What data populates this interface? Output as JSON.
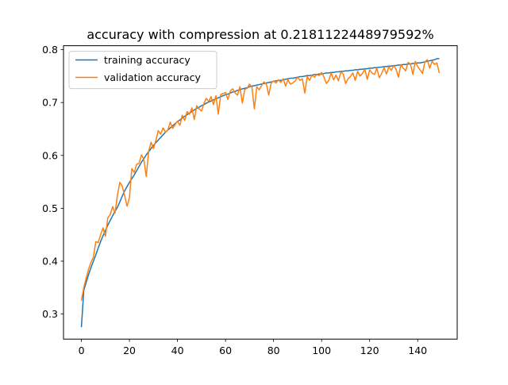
{
  "chart_data": {
    "type": "line",
    "title": "accuracy with compression at 0.2181122448979592%",
    "xlabel": "",
    "ylabel": "",
    "xlim": [
      -7.45,
      156.45
    ],
    "ylim": [
      0.2525,
      0.8075
    ],
    "xticks": [
      0,
      20,
      40,
      60,
      80,
      100,
      120,
      140
    ],
    "yticks": [
      0.3,
      0.4,
      0.5,
      0.6,
      0.7,
      0.8
    ],
    "xtick_labels": [
      "0",
      "20",
      "40",
      "60",
      "80",
      "100",
      "120",
      "140"
    ],
    "ytick_labels": [
      "0.3",
      "0.4",
      "0.5",
      "0.6",
      "0.7",
      "0.8"
    ],
    "grid": false,
    "legend_position": "upper left",
    "series": [
      {
        "name": "training accuracy",
        "color": "#1f77b4",
        "x": [
          0,
          1,
          2,
          3,
          4,
          5,
          6,
          7,
          8,
          9,
          10,
          11,
          12,
          13,
          14,
          15,
          16,
          17,
          18,
          19,
          20,
          21,
          22,
          23,
          24,
          25,
          26,
          27,
          28,
          29,
          30,
          31,
          32,
          33,
          34,
          35,
          36,
          37,
          38,
          39,
          40,
          41,
          42,
          43,
          44,
          45,
          46,
          47,
          48,
          49,
          50,
          51,
          52,
          53,
          54,
          55,
          56,
          57,
          58,
          59,
          60,
          61,
          62,
          63,
          64,
          65,
          66,
          67,
          68,
          69,
          70,
          71,
          72,
          73,
          74,
          75,
          76,
          77,
          78,
          79,
          80,
          81,
          82,
          83,
          84,
          85,
          86,
          87,
          88,
          89,
          90,
          91,
          92,
          93,
          94,
          95,
          96,
          97,
          98,
          99,
          100,
          101,
          102,
          103,
          104,
          105,
          106,
          107,
          108,
          109,
          110,
          111,
          112,
          113,
          114,
          115,
          116,
          117,
          118,
          119,
          120,
          121,
          122,
          123,
          124,
          125,
          126,
          127,
          128,
          129,
          130,
          131,
          132,
          133,
          134,
          135,
          136,
          137,
          138,
          139,
          140,
          141,
          142,
          143,
          144,
          145,
          146,
          147,
          148,
          149
        ],
        "values": [
          0.275,
          0.345,
          0.36,
          0.375,
          0.388,
          0.4,
          0.412,
          0.425,
          0.437,
          0.448,
          0.458,
          0.468,
          0.477,
          0.486,
          0.494,
          0.502,
          0.512,
          0.523,
          0.533,
          0.541,
          0.549,
          0.556,
          0.563,
          0.571,
          0.579,
          0.587,
          0.594,
          0.601,
          0.607,
          0.613,
          0.619,
          0.624,
          0.629,
          0.634,
          0.639,
          0.644,
          0.648,
          0.652,
          0.656,
          0.66,
          0.664,
          0.667,
          0.671,
          0.674,
          0.677,
          0.68,
          0.683,
          0.686,
          0.689,
          0.691,
          0.694,
          0.696,
          0.699,
          0.701,
          0.703,
          0.705,
          0.707,
          0.709,
          0.711,
          0.713,
          0.715,
          0.716,
          0.718,
          0.72,
          0.721,
          0.723,
          0.724,
          0.726,
          0.727,
          0.728,
          0.73,
          0.731,
          0.732,
          0.733,
          0.734,
          0.735,
          0.736,
          0.737,
          0.738,
          0.739,
          0.74,
          0.741,
          0.742,
          0.742,
          0.743,
          0.744,
          0.745,
          0.746,
          0.746,
          0.747,
          0.748,
          0.749,
          0.749,
          0.75,
          0.751,
          0.751,
          0.752,
          0.753,
          0.753,
          0.754,
          0.754,
          0.755,
          0.756,
          0.756,
          0.757,
          0.757,
          0.758,
          0.758,
          0.759,
          0.759,
          0.76,
          0.76,
          0.761,
          0.761,
          0.762,
          0.762,
          0.763,
          0.763,
          0.764,
          0.764,
          0.765,
          0.765,
          0.766,
          0.766,
          0.767,
          0.767,
          0.768,
          0.768,
          0.769,
          0.769,
          0.77,
          0.77,
          0.771,
          0.771,
          0.772,
          0.772,
          0.773,
          0.773,
          0.774,
          0.774,
          0.775,
          0.775,
          0.776,
          0.777,
          0.778,
          0.779,
          0.78,
          0.781,
          0.783,
          0.783
        ]
      },
      {
        "name": "validation accuracy",
        "color": "#ff7f0e",
        "x": [
          0,
          1,
          2,
          3,
          4,
          5,
          6,
          7,
          8,
          9,
          10,
          11,
          12,
          13,
          14,
          15,
          16,
          17,
          18,
          19,
          20,
          21,
          22,
          23,
          24,
          25,
          26,
          27,
          28,
          29,
          30,
          31,
          32,
          33,
          34,
          35,
          36,
          37,
          38,
          39,
          40,
          41,
          42,
          43,
          44,
          45,
          46,
          47,
          48,
          49,
          50,
          51,
          52,
          53,
          54,
          55,
          56,
          57,
          58,
          59,
          60,
          61,
          62,
          63,
          64,
          65,
          66,
          67,
          68,
          69,
          70,
          71,
          72,
          73,
          74,
          75,
          76,
          77,
          78,
          79,
          80,
          81,
          82,
          83,
          84,
          85,
          86,
          87,
          88,
          89,
          90,
          91,
          92,
          93,
          94,
          95,
          96,
          97,
          98,
          99,
          100,
          101,
          102,
          103,
          104,
          105,
          106,
          107,
          108,
          109,
          110,
          111,
          112,
          113,
          114,
          115,
          116,
          117,
          118,
          119,
          120,
          121,
          122,
          123,
          124,
          125,
          126,
          127,
          128,
          129,
          130,
          131,
          132,
          133,
          134,
          135,
          136,
          137,
          138,
          139,
          140,
          141,
          142,
          143,
          144,
          145,
          146,
          147,
          148,
          149
        ],
        "values": [
          0.325,
          0.35,
          0.368,
          0.385,
          0.398,
          0.408,
          0.437,
          0.435,
          0.45,
          0.463,
          0.447,
          0.482,
          0.488,
          0.503,
          0.491,
          0.525,
          0.549,
          0.542,
          0.524,
          0.504,
          0.52,
          0.575,
          0.568,
          0.583,
          0.585,
          0.601,
          0.592,
          0.56,
          0.608,
          0.625,
          0.613,
          0.628,
          0.647,
          0.64,
          0.652,
          0.644,
          0.648,
          0.663,
          0.651,
          0.658,
          0.665,
          0.657,
          0.676,
          0.666,
          0.683,
          0.678,
          0.69,
          0.668,
          0.694,
          0.688,
          0.684,
          0.698,
          0.708,
          0.702,
          0.711,
          0.696,
          0.713,
          0.678,
          0.715,
          0.717,
          0.719,
          0.706,
          0.722,
          0.726,
          0.718,
          0.714,
          0.73,
          0.699,
          0.725,
          0.727,
          0.735,
          0.729,
          0.688,
          0.73,
          0.724,
          0.732,
          0.739,
          0.735,
          0.714,
          0.737,
          0.741,
          0.737,
          0.743,
          0.738,
          0.745,
          0.731,
          0.743,
          0.735,
          0.737,
          0.741,
          0.748,
          0.742,
          0.745,
          0.718,
          0.749,
          0.742,
          0.752,
          0.748,
          0.753,
          0.751,
          0.757,
          0.748,
          0.736,
          0.742,
          0.756,
          0.743,
          0.752,
          0.741,
          0.758,
          0.754,
          0.736,
          0.745,
          0.749,
          0.756,
          0.742,
          0.759,
          0.75,
          0.755,
          0.763,
          0.744,
          0.762,
          0.756,
          0.753,
          0.765,
          0.747,
          0.755,
          0.766,
          0.754,
          0.768,
          0.761,
          0.77,
          0.763,
          0.748,
          0.772,
          0.765,
          0.76,
          0.776,
          0.773,
          0.753,
          0.778,
          0.768,
          0.762,
          0.755,
          0.777,
          0.781,
          0.765,
          0.778,
          0.772,
          0.775,
          0.756
        ]
      }
    ]
  }
}
